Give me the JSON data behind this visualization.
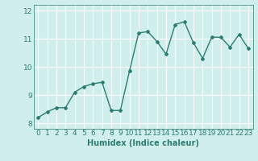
{
  "x": [
    0,
    1,
    2,
    3,
    4,
    5,
    6,
    7,
    8,
    9,
    10,
    11,
    12,
    13,
    14,
    15,
    16,
    17,
    18,
    19,
    20,
    21,
    22,
    23
  ],
  "y": [
    8.2,
    8.4,
    8.55,
    8.55,
    9.1,
    9.3,
    9.4,
    9.45,
    8.45,
    8.45,
    9.85,
    11.2,
    11.25,
    10.9,
    10.45,
    11.5,
    11.6,
    10.85,
    10.3,
    11.05,
    11.05,
    10.7,
    11.15,
    10.65
  ],
  "line_color": "#2e7d72",
  "marker": "D",
  "marker_size": 2,
  "linewidth": 1.0,
  "xlabel": "Humidex (Indice chaleur)",
  "bg_color": "#d0eeec",
  "grid_color": "#ffffff",
  "label_color": "#2e7d72",
  "ylim": [
    7.8,
    12.2
  ],
  "yticks": [
    8,
    9,
    10,
    11,
    12
  ],
  "xlim": [
    -0.5,
    23.5
  ],
  "xtick_labels": [
    "0",
    "1",
    "2",
    "3",
    "4",
    "5",
    "6",
    "7",
    "8",
    "9",
    "10",
    "11",
    "12",
    "13",
    "14",
    "15",
    "16",
    "17",
    "18",
    "19",
    "20",
    "21",
    "22",
    "23"
  ],
  "xlabel_fontsize": 7,
  "tick_fontsize": 6.5
}
